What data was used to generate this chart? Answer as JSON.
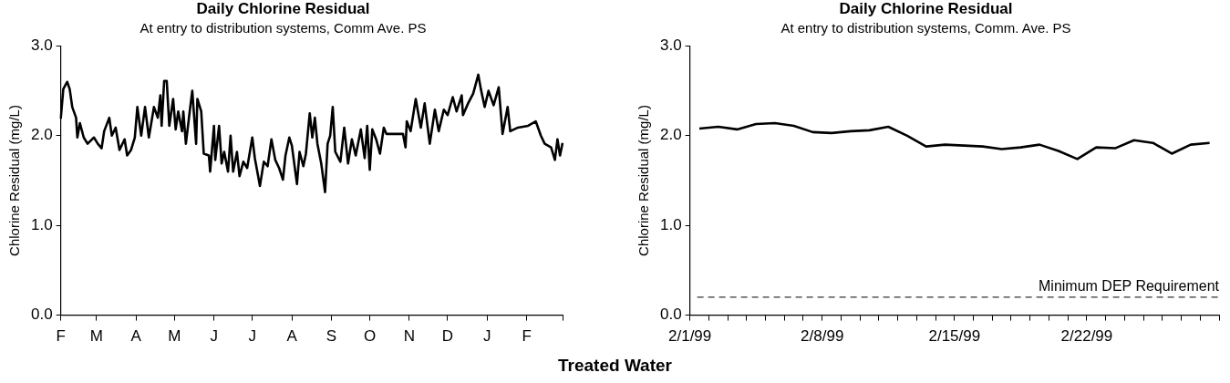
{
  "chart_data": [
    {
      "type": "line",
      "title": "Daily Chlorine Residual",
      "subtitle": "At entry to distribution systems, Comm Ave. PS",
      "ylabel": "Chlorine Residual (mg/L)",
      "categories": [
        "F",
        null,
        null,
        null,
        null,
        null,
        null,
        null,
        null,
        null,
        null,
        null,
        null,
        null,
        null,
        null,
        null,
        null,
        null,
        null,
        null,
        null,
        null,
        null,
        null,
        null,
        null,
        null,
        "M",
        null,
        null,
        null,
        null,
        null,
        null,
        null,
        null,
        null,
        null,
        null,
        null,
        null,
        null,
        null,
        null,
        null,
        null,
        null,
        null,
        null,
        null,
        null,
        null,
        null,
        null,
        null,
        null,
        null,
        null,
        "A",
        null,
        null,
        null,
        null,
        null,
        null,
        null,
        null,
        null,
        null,
        null,
        null,
        null,
        null,
        null,
        null,
        null,
        null,
        null,
        null,
        null,
        null,
        null,
        null,
        null,
        null,
        null,
        null,
        null,
        "M",
        null,
        null,
        null,
        null,
        null,
        null,
        null,
        null,
        null,
        null,
        null,
        null,
        null,
        null,
        null,
        null,
        null,
        null,
        null,
        null,
        null,
        null,
        null,
        null,
        null,
        null,
        null,
        null,
        null,
        null,
        "J",
        null,
        null,
        null,
        null,
        null,
        null,
        null,
        null,
        null,
        null,
        null,
        null,
        null,
        null,
        null,
        null,
        null,
        null,
        null,
        null,
        null,
        null,
        null,
        null,
        null,
        null,
        null,
        null,
        null,
        "J",
        null,
        null,
        null,
        null,
        null,
        null,
        null,
        null,
        null,
        null,
        null,
        null,
        null,
        null,
        null,
        null,
        null,
        null,
        null,
        null,
        null,
        null,
        null,
        null,
        null,
        null,
        null,
        null,
        null,
        null,
        "A",
        null,
        null,
        null,
        null,
        null,
        null,
        null,
        null,
        null,
        null,
        null,
        null,
        null,
        null,
        null,
        null,
        null,
        null,
        null,
        null,
        null,
        null,
        null,
        null,
        null,
        null,
        null,
        null,
        null,
        null,
        "S",
        null,
        null,
        null,
        null,
        null,
        null,
        null,
        null,
        null,
        null,
        null,
        null,
        null,
        null,
        null,
        null,
        null,
        null,
        null,
        null,
        null,
        null,
        null,
        null,
        null,
        null,
        null,
        null,
        null,
        "O",
        null,
        null,
        null,
        null,
        null,
        null,
        null,
        null,
        null,
        null,
        null,
        null,
        null,
        null,
        null,
        null,
        null,
        null,
        null,
        null,
        null,
        null,
        null,
        null,
        null,
        null,
        null,
        null,
        null,
        null,
        "N",
        null,
        null,
        null,
        null,
        null,
        null,
        null,
        null,
        null,
        null,
        null,
        null,
        null,
        null,
        null,
        null,
        null,
        null,
        null,
        null,
        null,
        null,
        null,
        null,
        null,
        null,
        null,
        null,
        null,
        "D",
        null,
        null,
        null,
        null,
        null,
        null,
        null,
        null,
        null,
        null,
        null,
        null,
        null,
        null,
        null,
        null,
        null,
        null,
        null,
        null,
        null,
        null,
        null,
        null,
        null,
        null,
        null,
        null,
        null,
        null,
        "J",
        null,
        null,
        null,
        null,
        null,
        null,
        null,
        null,
        null,
        null,
        null,
        null,
        null,
        null,
        null,
        null,
        null,
        null,
        null,
        null,
        null,
        null,
        null,
        null,
        null,
        null,
        null,
        null,
        null,
        null,
        "F",
        null,
        null,
        null,
        null,
        null,
        null,
        null,
        null,
        null,
        null,
        null,
        null,
        null,
        null,
        null,
        null,
        null,
        null,
        null,
        null,
        null,
        null,
        null,
        null,
        null,
        null,
        null,
        null
      ],
      "series": [
        {
          "color": "#000000",
          "values": [
            2.19,
            null,
            2.52,
            null,
            null,
            2.6,
            null,
            2.52,
            null,
            2.32,
            null,
            null,
            2.2,
            1.98,
            null,
            2.14,
            null,
            null,
            1.98,
            null,
            null,
            1.91,
            null,
            null,
            null,
            null,
            1.98,
            null,
            null,
            1.91,
            null,
            null,
            1.86,
            null,
            2.05,
            null,
            null,
            null,
            2.2,
            null,
            2.0,
            null,
            null,
            2.09,
            null,
            null,
            1.84,
            null,
            null,
            null,
            1.96,
            null,
            1.78,
            null,
            null,
            1.84,
            null,
            null,
            1.98,
            null,
            2.32,
            null,
            null,
            2.0,
            null,
            null,
            2.32,
            null,
            null,
            1.98,
            null,
            null,
            null,
            2.32,
            null,
            null,
            2.2,
            null,
            2.45,
            2.11,
            null,
            2.61,
            null,
            2.61,
            null,
            2.11,
            null,
            null,
            2.41,
            null,
            2.07,
            null,
            2.27,
            null,
            null,
            2.05,
            2.27,
            null,
            1.91,
            null,
            null,
            2.27,
            null,
            2.5,
            null,
            null,
            1.91,
            2.41,
            null,
            null,
            2.27,
            null,
            1.8,
            null,
            null,
            null,
            1.78,
            1.6,
            null,
            null,
            2.11,
            1.73,
            null,
            null,
            2.11,
            null,
            1.69,
            null,
            1.82,
            null,
            null,
            1.6,
            null,
            2.0,
            null,
            1.6,
            null,
            null,
            1.82,
            null,
            1.55,
            null,
            null,
            1.71,
            null,
            null,
            1.64,
            null,
            null,
            null,
            1.98,
            null,
            1.75,
            null,
            null,
            null,
            1.44,
            null,
            null,
            1.71,
            null,
            null,
            1.66,
            null,
            null,
            1.96,
            null,
            null,
            1.73,
            null,
            null,
            1.64,
            null,
            null,
            1.51,
            null,
            1.78,
            null,
            null,
            1.98,
            null,
            1.89,
            null,
            null,
            null,
            1.46,
            null,
            1.82,
            null,
            null,
            1.66,
            null,
            1.8,
            null,
            null,
            2.25,
            null,
            1.98,
            null,
            2.2,
            null,
            1.91,
            null,
            null,
            1.69,
            null,
            null,
            1.37,
            null,
            1.91,
            null,
            2.0,
            null,
            2.32,
            null,
            1.82,
            null,
            null,
            null,
            1.71,
            null,
            null,
            2.09,
            null,
            null,
            1.69,
            null,
            null,
            1.96,
            null,
            null,
            1.78,
            null,
            null,
            null,
            2.07,
            null,
            null,
            1.75,
            null,
            2.11,
            null,
            1.62,
            null,
            2.07,
            null,
            null,
            1.96,
            null,
            null,
            1.8,
            null,
            null,
            2.09,
            null,
            2.02,
            null,
            null,
            null,
            null,
            null,
            null,
            null,
            null,
            null,
            null,
            null,
            null,
            2.02,
            null,
            1.87,
            2.16,
            null,
            null,
            2.05,
            null,
            null,
            null,
            2.41,
            null,
            null,
            null,
            2.09,
            null,
            null,
            2.36,
            null,
            null,
            null,
            1.91,
            null,
            null,
            null,
            2.29,
            null,
            null,
            2.05,
            null,
            null,
            null,
            2.29,
            null,
            null,
            2.23,
            null,
            null,
            null,
            2.43,
            null,
            null,
            2.27,
            null,
            null,
            null,
            2.45,
            2.23,
            null,
            null,
            null,
            2.36,
            null,
            null,
            null,
            2.47,
            null,
            null,
            null,
            2.68,
            null,
            2.52,
            null,
            null,
            2.32,
            null,
            null,
            2.5,
            null,
            null,
            null,
            2.34,
            null,
            null,
            null,
            2.54,
            null,
            null,
            2.02,
            null,
            null,
            null,
            2.32,
            null,
            2.05,
            null,
            null,
            null,
            null,
            null,
            2.09,
            null,
            null,
            null,
            null,
            null,
            null,
            null,
            2.11,
            null,
            null,
            null,
            null,
            null,
            2.16,
            null,
            null,
            null,
            2.0,
            null,
            null,
            1.91,
            null,
            null,
            null,
            null,
            1.87,
            null,
            null,
            1.73,
            null,
            1.96,
            null,
            1.78,
            null,
            1.92
          ]
        }
      ],
      "ylim": [
        0,
        3
      ],
      "yticks": [
        {
          "value": 0,
          "label": "0.0"
        },
        {
          "value": 1,
          "label": "1.0"
        },
        {
          "value": 2,
          "label": "2.0"
        },
        {
          "value": 3,
          "label": "3.0"
        }
      ],
      "grid": false,
      "legend": false,
      "marker": "none",
      "line_style": "solid",
      "annotations": [
        "Treated Water"
      ]
    },
    {
      "type": "line",
      "title": "Daily Chlorine Residual",
      "subtitle": "At entry to distribution systems, Comm. Ave. PS",
      "ylabel": "Chlorine Residual (mg/L)",
      "x": [
        "1999-02-01T12:00",
        "1999-02-02T12:00",
        "1999-02-03T12:00",
        "1999-02-04T12:00",
        "1999-02-05T12:00",
        "1999-02-06T12:00",
        "1999-02-07T12:00",
        "1999-02-08T12:00",
        "1999-02-09T12:00",
        "1999-02-10T12:00",
        "1999-02-11T12:00",
        "1999-02-12T12:00",
        "1999-02-13T12:00",
        "1999-02-14T12:00",
        "1999-02-15T12:00",
        "1999-02-16T12:00",
        "1999-02-17T12:00",
        "1999-02-18T12:00",
        "1999-02-19T12:00",
        "1999-02-20T12:00",
        "1999-02-21T12:00",
        "1999-02-22T12:00",
        "1999-02-23T12:00",
        "1999-02-24T12:00",
        "1999-02-25T12:00",
        "1999-02-26T12:00",
        "1999-02-27T12:00",
        "1999-02-28T12:00"
      ],
      "series": [
        {
          "color": "#000000",
          "values": [
            2.08,
            2.1,
            2.07,
            2.13,
            2.14,
            2.11,
            2.04,
            2.03,
            2.05,
            2.06,
            2.1,
            2.0,
            1.88,
            1.9,
            1.89,
            1.88,
            1.85,
            1.87,
            1.9,
            1.83,
            1.74,
            1.87,
            1.86,
            1.95,
            1.92,
            1.8,
            1.9,
            1.92
          ]
        }
      ],
      "xlim": [
        "1999-02-01",
        "1999-03-01"
      ],
      "xticks": [
        {
          "value": "1999-02-01",
          "label": "2/1/99"
        },
        {
          "value": "1999-02-02",
          "label": null
        },
        {
          "value": "1999-02-03",
          "label": null
        },
        {
          "value": "1999-02-04",
          "label": null
        },
        {
          "value": "1999-02-05",
          "label": null
        },
        {
          "value": "1999-02-06",
          "label": null
        },
        {
          "value": "1999-02-07",
          "label": null
        },
        {
          "value": "1999-02-08",
          "label": "2/8/99"
        },
        {
          "value": "1999-02-09",
          "label": null
        },
        {
          "value": "1999-02-10",
          "label": null
        },
        {
          "value": "1999-02-11",
          "label": null
        },
        {
          "value": "1999-02-12",
          "label": null
        },
        {
          "value": "1999-02-13",
          "label": null
        },
        {
          "value": "1999-02-14",
          "label": null
        },
        {
          "value": "1999-02-15",
          "label": "2/15/99"
        },
        {
          "value": "1999-02-16",
          "label": null
        },
        {
          "value": "1999-02-17",
          "label": null
        },
        {
          "value": "1999-02-18",
          "label": null
        },
        {
          "value": "1999-02-19",
          "label": null
        },
        {
          "value": "1999-02-20",
          "label": null
        },
        {
          "value": "1999-02-21",
          "label": null
        },
        {
          "value": "1999-02-22",
          "label": "2/22/99"
        },
        {
          "value": "1999-02-23",
          "label": null
        },
        {
          "value": "1999-02-24",
          "label": null
        },
        {
          "value": "1999-02-25",
          "label": null
        },
        {
          "value": "1999-02-26",
          "label": null
        },
        {
          "value": "1999-02-27",
          "label": null
        },
        {
          "value": "1999-02-28",
          "label": null
        },
        {
          "value": "1999-03-01",
          "label": null
        }
      ],
      "ylim": [
        0,
        3
      ],
      "yticks": [
        {
          "value": 0,
          "label": "0.0"
        },
        {
          "value": 1,
          "label": "1.0"
        },
        {
          "value": 2,
          "label": "2.0"
        },
        {
          "value": 3,
          "label": "3.0"
        }
      ],
      "ref_lines": [
        {
          "axis": "y",
          "value": 0.2,
          "label": "Minimum DEP Requirement",
          "line_style": "dashed",
          "color": "#000000"
        }
      ],
      "grid": false,
      "legend": false,
      "marker": "none",
      "line_style": "solid"
    }
  ]
}
